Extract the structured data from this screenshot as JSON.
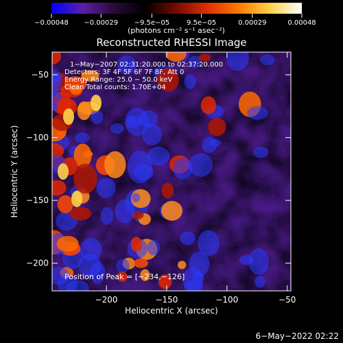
{
  "chart_data": {
    "type": "heatmap",
    "title": "Reconstructed RHESSI Image",
    "xlabel": "Heliocentric X (arcsec)",
    "ylabel": "Heliocentric Y (arcsec)",
    "xlim": [
      -245,
      -47
    ],
    "ylim": [
      -222,
      -32
    ],
    "x_ticks": [
      -200,
      -150,
      -100,
      -50
    ],
    "y_ticks": [
      -50,
      -100,
      -150,
      -200
    ],
    "x_tick_labels": [
      "−200",
      "−150",
      "−100",
      "−50"
    ],
    "y_tick_labels": [
      "−50",
      "−100",
      "−150",
      "−200"
    ],
    "colorbar": {
      "min": -0.00048,
      "max": 0.00048,
      "tick_values": [
        -0.00048,
        -0.00029,
        -9.5e-05,
        9.5e-05,
        0.00029,
        0.00048
      ],
      "tick_labels": [
        "−0.00048",
        "−0.00029",
        "−9.5e−05",
        "9.5e−05",
        "0.00029",
        "0.00048"
      ],
      "unit_label": "(photons cm⁻² s⁻¹ asec⁻²)"
    },
    "annotations": [
      "1−May−2007 02:31:20.000 to 02:37:20.000",
      "Detectors: 3F 4F 5F 6F 7F 8F, Att 0",
      "Energy Range: 25.0 − 50.0 keV",
      "Clean     Total counts: 1.70E+04"
    ],
    "peak_label": "Position of Peak = [−234,−126]",
    "peak_position": [
      -234,
      -126
    ],
    "colormap": [
      "#0000ff",
      "#5a1fa8",
      "#2a0a3a",
      "#000000",
      "#7a0a00",
      "#e03000",
      "#ff7a00",
      "#ffd24a",
      "#ffffff"
    ],
    "footer_timestamp": "6−May−2022 02:22"
  }
}
